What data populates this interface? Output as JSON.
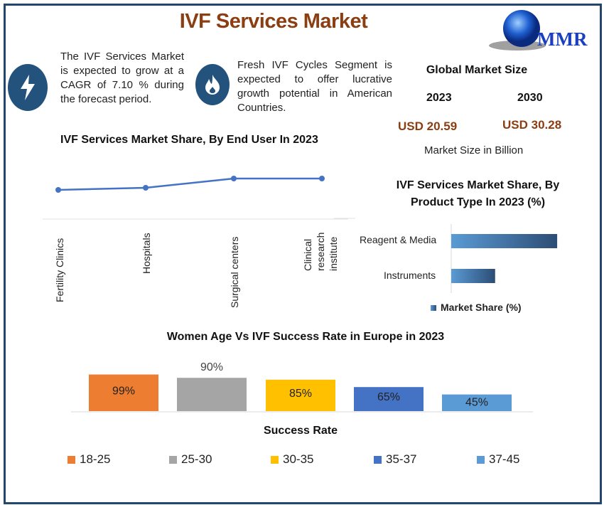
{
  "title": "IVF Services Market",
  "logo_text": "MMR",
  "blurbs": [
    {
      "icon": "lightning-icon",
      "text": "The IVF Services Market is expected to grow at a CAGR of 7.10 % during the forecast period."
    },
    {
      "icon": "flame-icon",
      "text": "Fresh IVF Cycles Segment is expected to offer lucrative growth potential in American Countries."
    }
  ],
  "market_size": {
    "heading": "Global Market Size",
    "year_a": "2023",
    "year_b": "2030",
    "value_a": "USD 20.59",
    "value_b": "USD 30.28",
    "unit_note": "Market Size in Billion"
  },
  "colors": {
    "frame": "#23466e",
    "title": "#8a3e12",
    "line": "#4472c4",
    "icon_bg": "#23527c"
  },
  "chart_data": [
    {
      "type": "line",
      "title": "IVF Services Market Share, By End User In 2023",
      "categories": [
        "Fertility Clinics",
        "Hospitals",
        "Surgical centers",
        "Clinical research institute"
      ],
      "values": [
        20,
        21.5,
        28,
        28
      ],
      "ylim": [
        0,
        40
      ],
      "grid": false,
      "color": "#4472c4"
    },
    {
      "type": "bar",
      "orientation": "horizontal",
      "title": "IVF Services Market Share, By Product Type In 2023 (%)",
      "categories": [
        "Reagent & Media",
        "Instruments"
      ],
      "series": [
        {
          "name": "Market Share (%)",
          "values": [
            70,
            29
          ]
        }
      ],
      "xlim": [
        0,
        100
      ],
      "legend": "bottom",
      "grid": false
    },
    {
      "type": "bar",
      "title": "Women Age Vs IVF Success Rate in Europe in 2023",
      "xlabel": "Success Rate",
      "categories": [
        "18-25",
        "25-30",
        "30-35",
        "35-37",
        "37-45"
      ],
      "values": [
        99,
        90,
        85,
        65,
        45
      ],
      "data_labels": [
        "99%",
        "90%",
        "85%",
        "65%",
        "45%"
      ],
      "colors": [
        "#ed7d31",
        "#a5a5a5",
        "#ffc000",
        "#4472c4",
        "#5b9bd5"
      ],
      "legend": "bottom",
      "grid": false
    }
  ]
}
